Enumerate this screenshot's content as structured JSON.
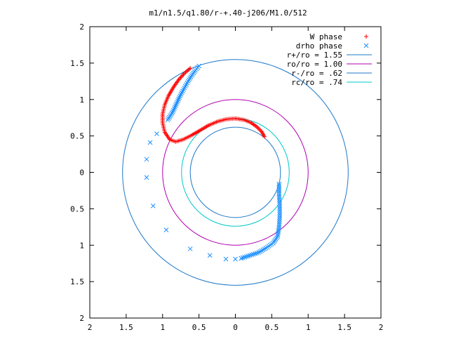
{
  "chart_data": {
    "type": "scatter",
    "title": "m1/n1.5/q1.80/r-+.40-j206/M1.0/512",
    "xlabel": "",
    "ylabel": "",
    "xlim": [
      -2,
      2
    ],
    "ylim": [
      -2,
      2
    ],
    "x_tick_labels": [
      "2",
      "1.5",
      "1",
      "0.5",
      "0",
      "0.5",
      "1",
      "1.5",
      "2"
    ],
    "y_tick_labels": [
      "2",
      "1.5",
      "1",
      "0.5",
      "0",
      "0.5",
      "1",
      "1.5",
      "2"
    ],
    "grid": false,
    "legend_position": "top-right",
    "series": [
      {
        "name": "W phase",
        "marker": "plus",
        "color": "#ff0000",
        "points": [
          [
            0.4,
            0.49
          ],
          [
            0.36,
            0.56
          ],
          [
            0.3,
            0.62
          ],
          [
            0.22,
            0.68
          ],
          [
            0.12,
            0.72
          ],
          [
            0.0,
            0.74
          ],
          [
            -0.12,
            0.73
          ],
          [
            -0.24,
            0.7
          ],
          [
            -0.36,
            0.65
          ],
          [
            -0.48,
            0.58
          ],
          [
            -0.6,
            0.51
          ],
          [
            -0.72,
            0.45
          ],
          [
            -0.82,
            0.42
          ],
          [
            -0.9,
            0.45
          ],
          [
            -0.97,
            0.55
          ],
          [
            -1.0,
            0.68
          ],
          [
            -1.0,
            0.8
          ],
          [
            -0.97,
            0.93
          ],
          [
            -0.92,
            1.05
          ],
          [
            -0.85,
            1.17
          ],
          [
            -0.78,
            1.27
          ],
          [
            -0.7,
            1.36
          ],
          [
            -0.62,
            1.43
          ]
        ]
      },
      {
        "name": "drho phase",
        "marker": "cross",
        "color": "#1e90ff",
        "points": [
          [
            -0.5,
            1.46
          ],
          [
            -0.55,
            1.4
          ],
          [
            -0.6,
            1.33
          ],
          [
            -0.65,
            1.25
          ],
          [
            -0.7,
            1.16
          ],
          [
            -0.76,
            1.05
          ],
          [
            -0.81,
            0.94
          ],
          [
            -0.86,
            0.83
          ],
          [
            -0.93,
            0.72
          ],
          [
            -1.08,
            0.53
          ],
          [
            -1.17,
            0.41
          ],
          [
            -1.22,
            0.18
          ],
          [
            -1.22,
            -0.07
          ],
          [
            -1.13,
            -0.46
          ],
          [
            -0.95,
            -0.79
          ],
          [
            -0.62,
            -1.05
          ],
          [
            -0.35,
            -1.14
          ],
          [
            -0.13,
            -1.19
          ],
          [
            0.0,
            -1.19
          ],
          [
            0.08,
            -1.18
          ],
          [
            0.2,
            -1.14
          ],
          [
            0.32,
            -1.1
          ],
          [
            0.42,
            -1.04
          ],
          [
            0.52,
            -0.97
          ],
          [
            0.58,
            -0.88
          ],
          [
            0.6,
            -0.75
          ],
          [
            0.61,
            -0.6
          ],
          [
            0.61,
            -0.45
          ],
          [
            0.6,
            -0.3
          ],
          [
            0.6,
            -0.16
          ]
        ]
      }
    ],
    "circles": [
      {
        "name": "r+/ro = 1.55",
        "radius": 1.55,
        "color": "#1e78c8"
      },
      {
        "name": "ro/ro = 1.00",
        "radius": 1.0,
        "color": "#b000b0"
      },
      {
        "name": "r-/ro = .62",
        "radius": 0.62,
        "color": "#1e78c8"
      },
      {
        "name": "rc/ro = .74",
        "radius": 0.74,
        "color": "#00c8c8"
      }
    ]
  }
}
